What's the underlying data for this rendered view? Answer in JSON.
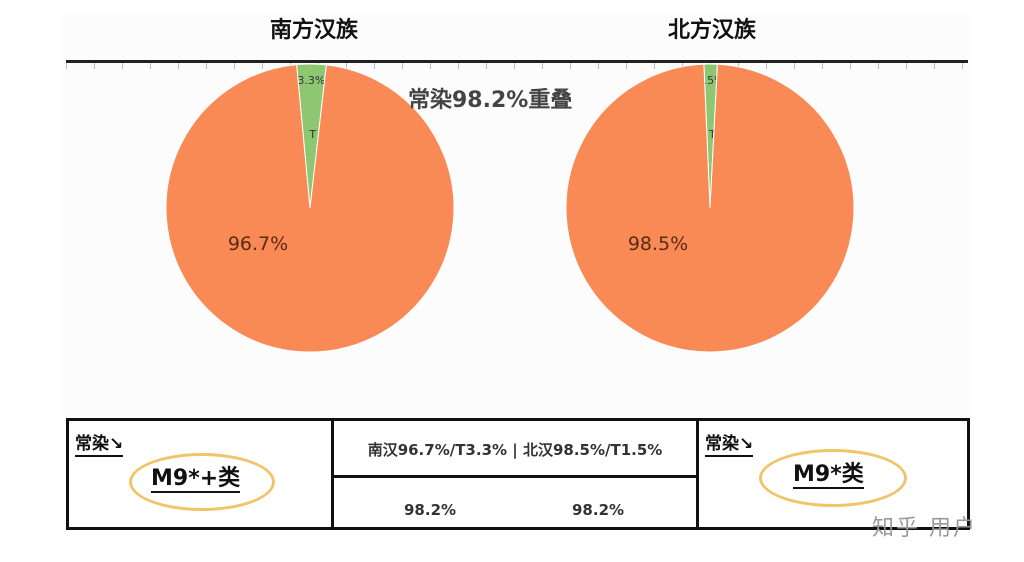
{
  "chart_data": [
    {
      "type": "pie",
      "title": "南方汉族",
      "slices": [
        {
          "label": "T",
          "value": 3.3,
          "display": "3.3%",
          "color": "#8dc771"
        },
        {
          "label": "",
          "value": 96.7,
          "display": "96.7%",
          "color": "#f98955"
        }
      ]
    },
    {
      "type": "pie",
      "title": "北方汉族",
      "slices": [
        {
          "label": "T",
          "value": 1.5,
          "display": "1.5%",
          "color": "#8dc771"
        },
        {
          "label": "",
          "value": 98.5,
          "display": "98.5%",
          "color": "#f98955"
        }
      ]
    }
  ],
  "overlap_label": "常染98.2%重叠",
  "table": {
    "left": {
      "tag": "常染↘",
      "haplogroup": "M9*+类"
    },
    "middle": {
      "header": "南汉96.7%/T3.3% | 北汉98.5%/T1.5%",
      "values": [
        "98.2%",
        "98.2%"
      ]
    },
    "right": {
      "tag": "常染↘",
      "haplogroup": "M9*类"
    }
  },
  "watermark": "知乎 用户",
  "colors": {
    "major": "#f98955",
    "minor": "#8dc771",
    "highlight": "#f1c46a"
  }
}
